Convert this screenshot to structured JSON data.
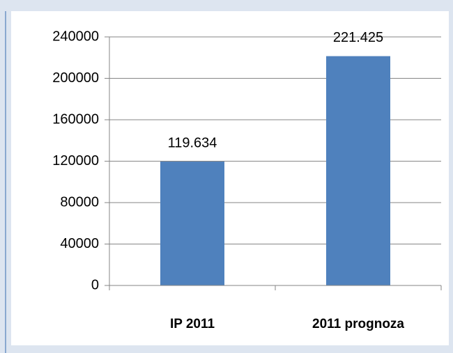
{
  "chart_data": {
    "type": "bar",
    "categories": [
      "IP 2011",
      "2011 prognoza"
    ],
    "values": [
      119634,
      221425
    ],
    "value_labels": [
      "119.634",
      "221.425"
    ],
    "color": "#4f81bd",
    "ylim": [
      0,
      240000
    ],
    "yticks": [
      0,
      40000,
      80000,
      120000,
      160000,
      200000,
      240000
    ],
    "grid": true
  }
}
